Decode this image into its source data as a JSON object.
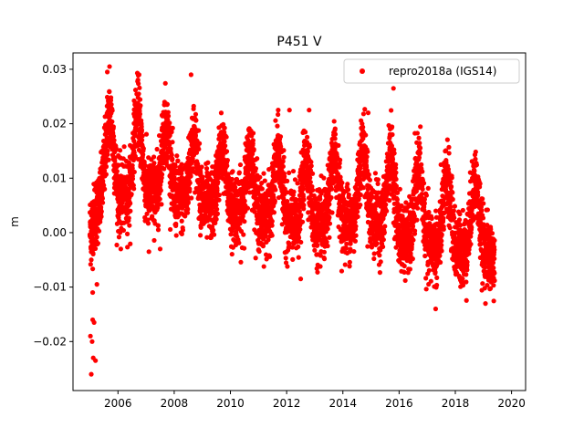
{
  "chart_data": {
    "type": "scatter",
    "title": "P451 V",
    "xlabel": "",
    "ylabel": "m",
    "xlim": [
      2004.4,
      2020.5
    ],
    "ylim": [
      -0.029,
      0.033
    ],
    "x_ticks": [
      2006,
      2008,
      2010,
      2012,
      2014,
      2016,
      2018,
      2020
    ],
    "x_tick_labels": [
      "2006",
      "2008",
      "2010",
      "2012",
      "2014",
      "2016",
      "2018",
      "2020"
    ],
    "y_ticks": [
      -0.02,
      -0.01,
      0.0,
      0.01,
      0.02,
      0.03
    ],
    "y_tick_labels": [
      "−0.02",
      "−0.01",
      "0.00",
      "0.01",
      "0.02",
      "0.03"
    ],
    "grid": false,
    "legend_position": "top-right",
    "series": [
      {
        "name": "repro2018a (IGS14)",
        "color": "#ff0000",
        "marker": "circle",
        "x_range": [
          2005.0,
          2019.4
        ],
        "daily_samples": true,
        "annual_cycle": {
          "mean_by_year": [
            [
              2005.0,
              0.003
            ],
            [
              2005.5,
              0.012
            ],
            [
              2006.0,
              0.012
            ],
            [
              2007.0,
              0.012
            ],
            [
              2008.0,
              0.011
            ],
            [
              2009.0,
              0.009
            ],
            [
              2010.0,
              0.008
            ],
            [
              2011.0,
              0.007
            ],
            [
              2012.0,
              0.006
            ],
            [
              2013.0,
              0.005
            ],
            [
              2014.0,
              0.006
            ],
            [
              2015.0,
              0.007
            ],
            [
              2016.0,
              0.004
            ],
            [
              2017.0,
              0.002
            ],
            [
              2018.0,
              0.001
            ],
            [
              2019.0,
              0.001
            ],
            [
              2019.4,
              -0.001
            ]
          ],
          "amplitude_by_year": [
            [
              2005.0,
              0.004
            ],
            [
              2006.0,
              0.008
            ],
            [
              2008.0,
              0.006
            ],
            [
              2010.0,
              0.005
            ],
            [
              2012.0,
              0.006
            ],
            [
              2014.0,
              0.006
            ],
            [
              2016.0,
              0.007
            ],
            [
              2018.0,
              0.006
            ],
            [
              2019.4,
              0.006
            ]
          ],
          "peak_phase": 0.7
        },
        "outliers": [
          [
            2005.02,
            -0.019
          ],
          [
            2005.05,
            -0.026
          ],
          [
            2005.08,
            -0.02
          ],
          [
            2005.1,
            -0.016
          ],
          [
            2005.12,
            -0.023
          ],
          [
            2005.2,
            -0.0235
          ],
          [
            2005.15,
            -0.0165
          ],
          [
            2005.05,
            -0.005
          ],
          [
            2005.1,
            -0.011
          ],
          [
            2005.25,
            -0.0095
          ],
          [
            2005.7,
            0.0305
          ],
          [
            2006.1,
            -0.003
          ],
          [
            2007.1,
            -0.0035
          ],
          [
            2007.5,
            -0.003
          ],
          [
            2008.6,
            0.029
          ],
          [
            2012.5,
            -0.0085
          ],
          [
            2015.8,
            0.0265
          ],
          [
            2017.3,
            -0.014
          ],
          [
            2005.62,
            0.0295
          ],
          [
            2006.75,
            0.029
          ],
          [
            2012.1,
            0.0225
          ],
          [
            2012.8,
            0.0225
          ],
          [
            2014.9,
            0.022
          ]
        ]
      }
    ]
  }
}
